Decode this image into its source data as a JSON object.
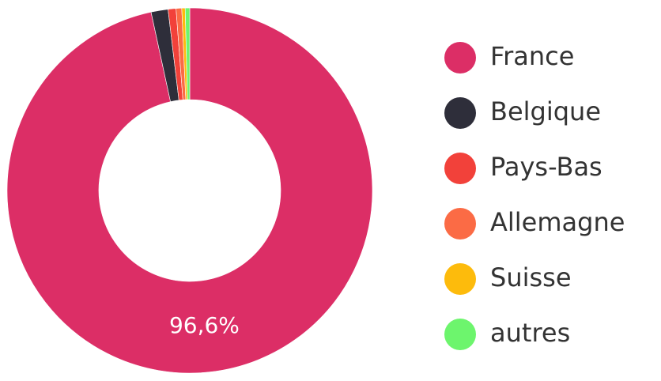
{
  "chart_data": {
    "type": "donut",
    "categories": [
      "France",
      "Belgique",
      "Pays-Bas",
      "Allemagne",
      "Suisse",
      "autres"
    ],
    "values": [
      96.6,
      1.5,
      0.7,
      0.5,
      0.3,
      0.4
    ],
    "value_labels": [
      "96,6%",
      null,
      null,
      null,
      null,
      null
    ],
    "colors": [
      "#dc2e66",
      "#2e2e3a",
      "#f2413a",
      "#fb6b45",
      "#fdbb0c",
      "#6df56d"
    ],
    "legend": "right"
  }
}
